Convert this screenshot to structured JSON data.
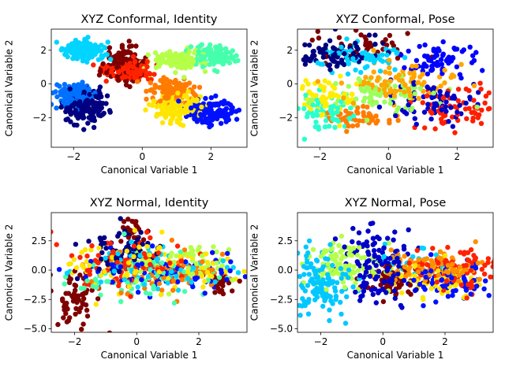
{
  "chart_data": [
    {
      "type": "scatter",
      "title": "XYZ Conformal, Identity",
      "xlabel": "Canonical Variable 1",
      "ylabel": "Canonical Variable 2",
      "xlim": [
        -2.65,
        3.05
      ],
      "ylim": [
        -3.75,
        3.25
      ],
      "xticks": [
        -2,
        0,
        2
      ],
      "yticks": [
        -2,
        0,
        2
      ],
      "xtick_labels": [
        "−2",
        "0",
        "2"
      ],
      "ytick_labels": [
        "−2",
        "0",
        "2"
      ],
      "grid": false,
      "colormap": "jet",
      "clusters": [
        {
          "color": "#00d4ff",
          "center": [
            -1.7,
            1.95
          ],
          "spread": [
            0.32,
            0.32
          ],
          "n": 140
        },
        {
          "color": "#0070ff",
          "center": [
            -2.0,
            -0.6
          ],
          "spread": [
            0.25,
            0.3
          ],
          "n": 140
        },
        {
          "color": "#000080",
          "center": [
            -1.6,
            -1.35
          ],
          "spread": [
            0.35,
            0.45
          ],
          "n": 150
        },
        {
          "color": "#7f0000",
          "center": [
            -0.55,
            1.2
          ],
          "spread": [
            0.3,
            0.5
          ],
          "n": 120
        },
        {
          "color": "#ff2200",
          "center": [
            -0.4,
            0.85
          ],
          "spread": [
            0.35,
            0.3
          ],
          "n": 130
        },
        {
          "color": "#b6ff49",
          "center": [
            1.1,
            1.4
          ],
          "spread": [
            0.45,
            0.3
          ],
          "n": 130
        },
        {
          "color": "#46ffad",
          "center": [
            2.1,
            1.7
          ],
          "spread": [
            0.3,
            0.3
          ],
          "n": 130
        },
        {
          "color": "#ff7c00",
          "center": [
            0.9,
            -0.4
          ],
          "spread": [
            0.35,
            0.35
          ],
          "n": 130
        },
        {
          "color": "#ffe600",
          "center": [
            1.0,
            -1.4
          ],
          "spread": [
            0.35,
            0.4
          ],
          "n": 150
        },
        {
          "color": "#0010ff",
          "center": [
            2.0,
            -1.6
          ],
          "spread": [
            0.35,
            0.35
          ],
          "n": 150
        }
      ]
    },
    {
      "type": "scatter",
      "title": "XYZ Conformal, Pose",
      "xlabel": "Canonical Variable 1",
      "ylabel": "Canonical Variable 2",
      "xlim": [
        -2.65,
        3.05
      ],
      "ylim": [
        -3.75,
        3.25
      ],
      "xticks": [
        -2,
        0,
        2
      ],
      "yticks": [
        -2,
        0,
        2
      ],
      "xtick_labels": [
        "−2",
        "0",
        "2"
      ],
      "ytick_labels": [
        "−2",
        "0",
        "2"
      ],
      "grid": false,
      "colormap": "jet",
      "clusters": [
        {
          "color": "#00007f",
          "center": [
            -1.5,
            1.8
          ],
          "spread": [
            0.55,
            0.45
          ],
          "n": 70
        },
        {
          "color": "#0000ff",
          "center": [
            1.5,
            1.5
          ],
          "spread": [
            0.6,
            0.5
          ],
          "n": 70
        },
        {
          "color": "#00d4ff",
          "center": [
            -0.8,
            1.5
          ],
          "spread": [
            0.7,
            0.45
          ],
          "n": 70
        },
        {
          "color": "#ffa600",
          "center": [
            0.3,
            0.1
          ],
          "spread": [
            0.7,
            0.6
          ],
          "n": 90
        },
        {
          "color": "#9bff5c",
          "center": [
            -0.3,
            -0.6
          ],
          "spread": [
            0.9,
            0.55
          ],
          "n": 80
        },
        {
          "color": "#0000c8",
          "center": [
            1.3,
            -1.0
          ],
          "spread": [
            0.6,
            0.6
          ],
          "n": 70
        },
        {
          "color": "#ffee00",
          "center": [
            -1.8,
            -0.8
          ],
          "spread": [
            0.45,
            0.55
          ],
          "n": 60
        },
        {
          "color": "#ff1e00",
          "center": [
            2.0,
            -1.5
          ],
          "spread": [
            0.5,
            0.7
          ],
          "n": 60
        },
        {
          "color": "#29ffce",
          "center": [
            -1.9,
            -1.6
          ],
          "spread": [
            0.45,
            0.6
          ],
          "n": 60
        },
        {
          "color": "#7f0000",
          "center": [
            -0.5,
            2.2
          ],
          "spread": [
            0.9,
            0.4
          ],
          "n": 40
        },
        {
          "color": "#ff7c00",
          "center": [
            -0.9,
            -2.0
          ],
          "spread": [
            0.5,
            0.35
          ],
          "n": 50
        }
      ]
    },
    {
      "type": "scatter",
      "title": "XYZ Normal, Identity",
      "xlabel": "Canonical Variable 1",
      "ylabel": "Canonical Variable 2",
      "xlim": [
        -2.75,
        3.55
      ],
      "ylim": [
        -5.3,
        4.9
      ],
      "xticks": [
        -2,
        0,
        2
      ],
      "yticks": [
        -5.0,
        -2.5,
        0.0,
        2.5
      ],
      "xtick_labels": [
        "−2",
        "0",
        "2"
      ],
      "ytick_labels": [
        "−5.0",
        "−2.5",
        "0.0",
        "2.5"
      ],
      "grid": false,
      "colormap": "jet",
      "clusters": [
        {
          "color": "#7f0000",
          "center": [
            -2.0,
            -2.5
          ],
          "spread": [
            0.35,
            1.2
          ],
          "n": 60
        },
        {
          "color": "#000080",
          "center": [
            -0.5,
            1.4
          ],
          "spread": [
            0.5,
            1.0
          ],
          "n": 70
        },
        {
          "color": "#ff2200",
          "center": [
            -0.4,
            0.3
          ],
          "spread": [
            1.2,
            1.1
          ],
          "n": 90
        },
        {
          "color": "#ffe600",
          "center": [
            0.2,
            0.3
          ],
          "spread": [
            1.5,
            1.1
          ],
          "n": 90
        },
        {
          "color": "#46ffad",
          "center": [
            0.0,
            -0.6
          ],
          "spread": [
            1.5,
            1.1
          ],
          "n": 80
        },
        {
          "color": "#0010ff",
          "center": [
            1.0,
            0.0
          ],
          "spread": [
            1.3,
            1.0
          ],
          "n": 80
        },
        {
          "color": "#00d4ff",
          "center": [
            0.6,
            0.3
          ],
          "spread": [
            1.4,
            1.0
          ],
          "n": 80
        },
        {
          "color": "#b6ff49",
          "center": [
            1.6,
            0.6
          ],
          "spread": [
            1.0,
            0.8
          ],
          "n": 70
        },
        {
          "color": "#ff7c00",
          "center": [
            1.3,
            -0.3
          ],
          "spread": [
            1.1,
            0.9
          ],
          "n": 70
        },
        {
          "color": "#7f0000",
          "center": [
            -0.2,
            3.3
          ],
          "spread": [
            0.2,
            0.6
          ],
          "n": 25
        },
        {
          "color": "#7f0000",
          "center": [
            2.8,
            -1.2
          ],
          "spread": [
            0.3,
            0.5
          ],
          "n": 20
        }
      ]
    },
    {
      "type": "scatter",
      "title": "XYZ Normal, Pose",
      "xlabel": "Canonical Variable 1",
      "ylabel": "Canonical Variable 2",
      "xlim": [
        -2.75,
        3.55
      ],
      "ylim": [
        -5.3,
        4.9
      ],
      "xticks": [
        -2,
        0,
        2
      ],
      "yticks": [
        -5.0,
        -2.5,
        0.0,
        2.5
      ],
      "xtick_labels": [
        "−2",
        "0",
        "2"
      ],
      "ytick_labels": [
        "−5.0",
        "−2.5",
        "0.0",
        "2.5"
      ],
      "grid": false,
      "colormap": "jet",
      "clusters": [
        {
          "color": "#00c8ff",
          "center": [
            -2.0,
            -1.0
          ],
          "spread": [
            0.45,
            1.4
          ],
          "n": 130
        },
        {
          "color": "#b6ff49",
          "center": [
            -1.3,
            0.6
          ],
          "spread": [
            0.6,
            1.0
          ],
          "n": 90
        },
        {
          "color": "#0000c8",
          "center": [
            -0.2,
            0.6
          ],
          "spread": [
            0.55,
            1.8
          ],
          "n": 120
        },
        {
          "color": "#7f0000",
          "center": [
            0.3,
            -0.8
          ],
          "spread": [
            0.5,
            0.7
          ],
          "n": 60
        },
        {
          "color": "#ff9000",
          "center": [
            1.5,
            0.2
          ],
          "spread": [
            0.7,
            0.8
          ],
          "n": 90
        },
        {
          "color": "#ff2200",
          "center": [
            2.2,
            0.2
          ],
          "spread": [
            0.7,
            0.9
          ],
          "n": 80
        },
        {
          "color": "#0010ff",
          "center": [
            2.2,
            -0.9
          ],
          "spread": [
            0.7,
            0.8
          ],
          "n": 80
        },
        {
          "color": "#ffe600",
          "center": [
            1.5,
            -0.8
          ],
          "spread": [
            0.8,
            0.7
          ],
          "n": 60
        },
        {
          "color": "#00d4ff",
          "center": [
            1.0,
            0.5
          ],
          "spread": [
            0.6,
            0.7
          ],
          "n": 40
        }
      ]
    }
  ]
}
